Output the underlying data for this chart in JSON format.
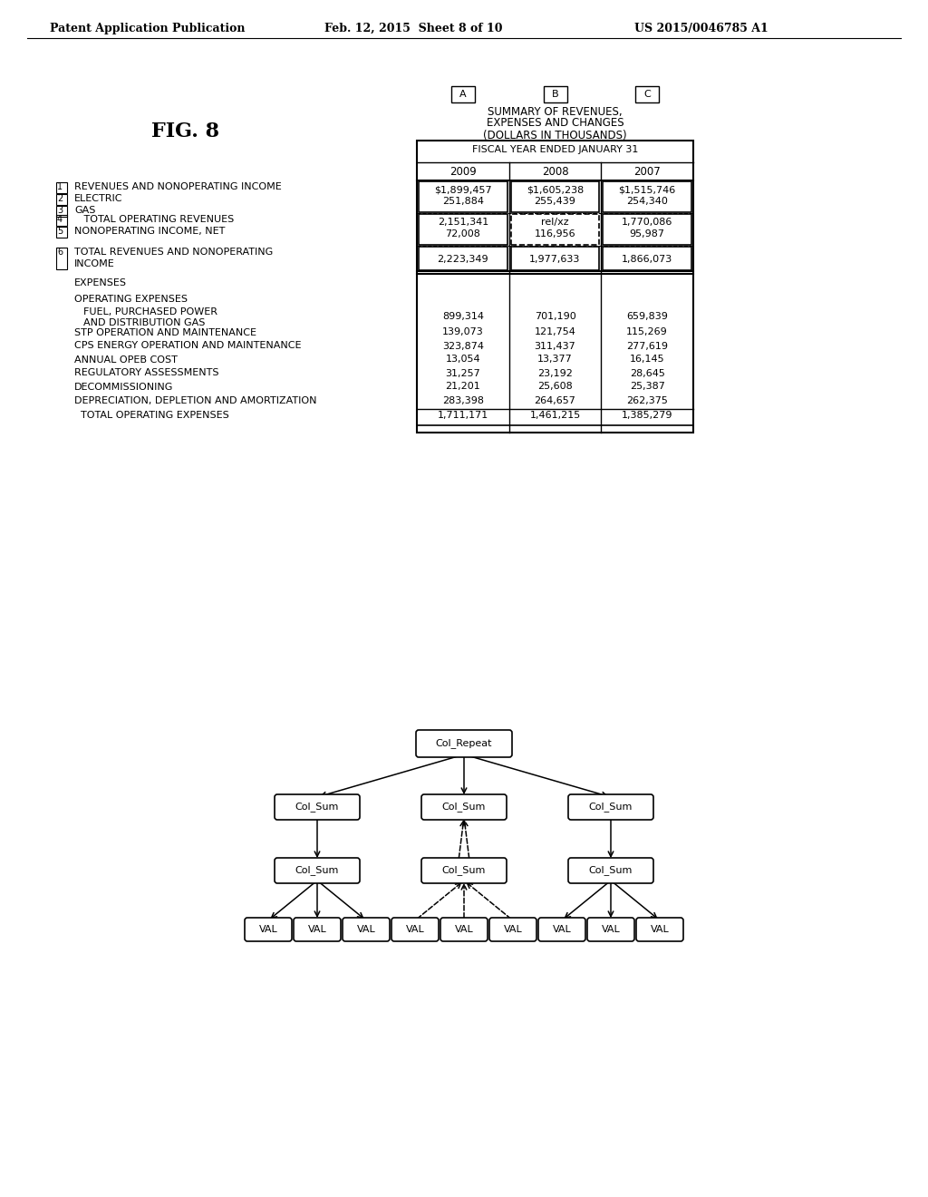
{
  "header_text": "Patent Application Publication",
  "header_date": "Feb. 12, 2015  Sheet 8 of 10",
  "header_patent": "US 2015/0046785 A1",
  "fig_label": "FIG. 8",
  "col_labels": [
    "A",
    "B",
    "C"
  ],
  "table_title1": "SUMMARY OF REVENUES,",
  "table_title2": "EXPENSES AND CHANGES",
  "table_subtitle": "(DOLLARS IN THOUSANDS)",
  "fiscal_year_header": "FISCAL YEAR ENDED JANUARY 31",
  "year_headers": [
    "2009",
    "2008",
    "2007"
  ],
  "expenses_label": "EXPENSES",
  "operating_expenses_label": "OPERATING EXPENSES",
  "fuel_line1": "FUEL, PURCHASED POWER",
  "fuel_line2": "AND DISTRIBUTION GAS",
  "expense_rows": [
    {
      "label": "  FUEL, PURCHASED POWER\n  AND DISTRIBUTION GAS",
      "vals": [
        "899,314",
        "701,190",
        "659,839"
      ]
    },
    {
      "label": "STP OPERATION AND MAINTENANCE",
      "vals": [
        "139,073",
        "121,754",
        "115,269"
      ]
    },
    {
      "label": "CPS ENERGY OPERATION AND MAINTENANCE",
      "vals": [
        "323,874",
        "311,437",
        "277,619"
      ]
    },
    {
      "label": "ANNUAL OPEB COST",
      "vals": [
        "13,054",
        "13,377",
        "16,145"
      ]
    },
    {
      "label": "REGULATORY ASSESSMENTS",
      "vals": [
        "31,257",
        "23,192",
        "28,645"
      ]
    },
    {
      "label": "DECOMMISSIONING",
      "vals": [
        "21,201",
        "25,608",
        "25,387"
      ]
    },
    {
      "label": "DEPRECIATION, DEPLETION AND AMORTIZATION",
      "vals": [
        "283,398",
        "264,657",
        "262,375"
      ]
    },
    {
      "label": "  TOTAL OPERATING EXPENSES",
      "vals": [
        "1,711,171",
        "1,461,215",
        "1,385,279"
      ]
    }
  ],
  "bg_color": "#ffffff",
  "text_color": "#000000"
}
